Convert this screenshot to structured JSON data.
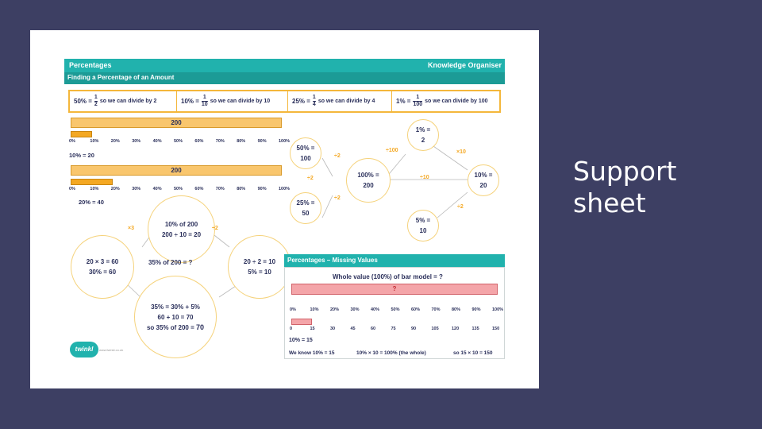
{
  "slide": {
    "background": "#3d3f63",
    "side_text_line1": "Support",
    "side_text_line2": "sheet"
  },
  "organiser": {
    "title": "Percentages",
    "type": "Knowledge Organiser",
    "section1": "Finding a Percentage of an Amount",
    "fractions": [
      {
        "pct": "50% =",
        "num": "1",
        "den": "2",
        "text": "so we can divide by 2"
      },
      {
        "pct": "10% =",
        "num": "1",
        "den": "10",
        "text": "so we can divide by 10"
      },
      {
        "pct": "25% =",
        "num": "1",
        "den": "4",
        "text": "so we can divide by 4"
      },
      {
        "pct": "1% =",
        "num": "1",
        "den": "100",
        "text": "so we can divide by 100"
      }
    ],
    "bar1": {
      "total": "200",
      "fill": 0.1,
      "result": "10% = 20"
    },
    "bar2": {
      "total": "200",
      "fill": 0.2,
      "result": "20% = 40"
    },
    "ticks": [
      "0%",
      "10%",
      "20%",
      "30%",
      "40%",
      "50%",
      "60%",
      "70%",
      "80%",
      "90%",
      "100%"
    ],
    "diagram": {
      "center": {
        "l1": "100% =",
        "l2": "200"
      },
      "c50": {
        "l1": "50% =",
        "l2": "100"
      },
      "c25": {
        "l1": "25% =",
        "l2": "50"
      },
      "c1": {
        "l1": "1% =",
        "l2": "2"
      },
      "c10": {
        "l1": "10% =",
        "l2": "20"
      },
      "c5": {
        "l1": "5% =",
        "l2": "10"
      },
      "a_div2_top": "÷2",
      "a_div2_mid": "÷2",
      "a_div2_low": "÷2",
      "a_div100": "÷100",
      "a_div10": "÷10",
      "a_x10": "×10",
      "a_div2_right": "÷2"
    },
    "example": {
      "top_l1": "10% of 200",
      "top_l2": "200 ÷ 10 = 20",
      "left_l1": "20 × 3 = 60",
      "left_l2": "30% = 60",
      "right_l1": "20 ÷ 2 = 10",
      "right_l2": "5% = 10",
      "question": "35% of 200 = ?",
      "bottom_l1": "35% = 30% + 5%",
      "bottom_l2": "60 + 10 = 70",
      "bottom_l3_pre": "so 35% of 200 = ",
      "bottom_l3_val": "70",
      "arrow_left": "×3",
      "arrow_right": "÷2"
    },
    "section2": "Percentages – Missing Values",
    "missing": {
      "heading": "Whole value (100%) of bar model = ?",
      "bar_label": "?",
      "pct_ticks": [
        "0%",
        "10%",
        "20%",
        "30%",
        "40%",
        "50%",
        "60%",
        "70%",
        "80%",
        "90%",
        "100%"
      ],
      "val_ticks": [
        "0",
        "15",
        "30",
        "45",
        "60",
        "75",
        "90",
        "105",
        "120",
        "135",
        "150"
      ],
      "fill": 0.1,
      "result": "10% = 15",
      "know1": "We know 10% = 15",
      "know2": "10% × 10 = 100% (the whole)",
      "know3": "so 15 × 10 = 150"
    },
    "logo": "twinkl",
    "logo_url": "www.twinkl.co.uk"
  }
}
